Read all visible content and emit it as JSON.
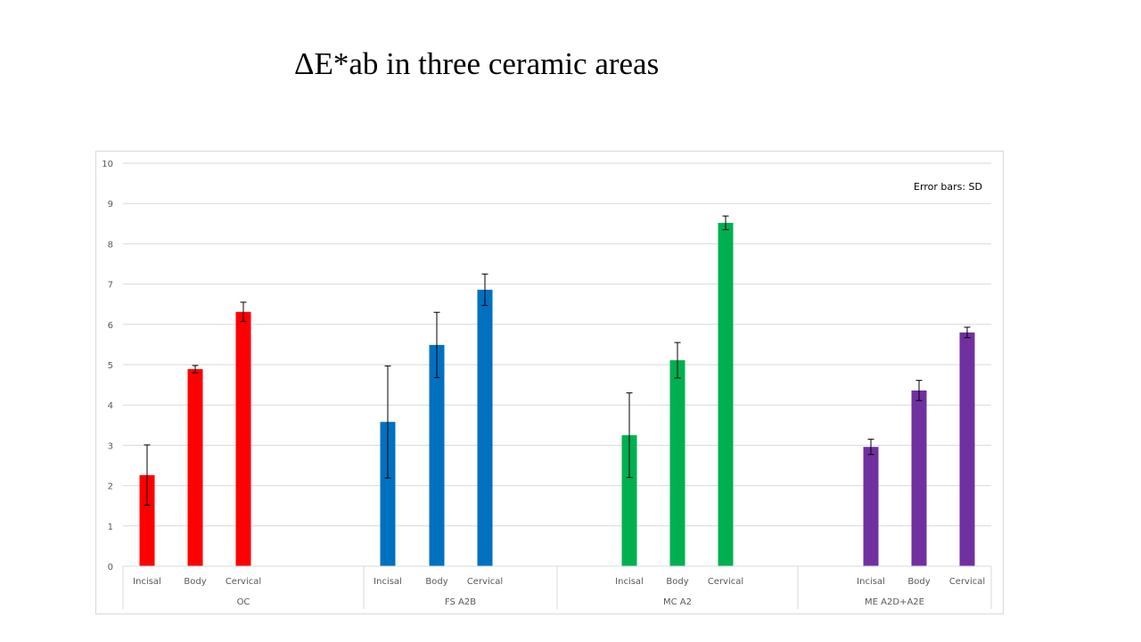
{
  "slide": {
    "title": "ΔE*ab in three ceramic areas"
  },
  "chart_data": {
    "type": "bar",
    "title": "ΔE*ab in three ceramic areas",
    "xlabel": "",
    "ylabel": "",
    "ylim": [
      0,
      10
    ],
    "yticks": [
      0,
      1,
      2,
      3,
      4,
      5,
      6,
      7,
      8,
      9,
      10
    ],
    "grid": true,
    "legend": null,
    "annotation": "Error bars: SD",
    "groups": [
      {
        "name": "OC",
        "color": "#ff0000",
        "categories": [
          "Incisal",
          "Body",
          "Cervical"
        ],
        "values": [
          2.26,
          4.89,
          6.31
        ],
        "sd": [
          0.75,
          0.09,
          0.24
        ]
      },
      {
        "name": "FS A2B",
        "color": "#0070c0",
        "categories": [
          "Incisal",
          "Body",
          "Cervical"
        ],
        "values": [
          3.58,
          5.49,
          6.86
        ],
        "sd": [
          1.39,
          0.81,
          0.39
        ]
      },
      {
        "name": "MC A2",
        "color": "#00b050",
        "categories": [
          "Incisal",
          "Body",
          "Cervical"
        ],
        "values": [
          3.25,
          5.11,
          8.52
        ],
        "sd": [
          1.05,
          0.44,
          0.17
        ]
      },
      {
        "name": "ME A2D+A2E",
        "color": "#7030a0",
        "categories": [
          "Incisal",
          "Body",
          "Cervical"
        ],
        "values": [
          2.96,
          4.36,
          5.8
        ],
        "sd": [
          0.19,
          0.25,
          0.13
        ]
      }
    ]
  }
}
